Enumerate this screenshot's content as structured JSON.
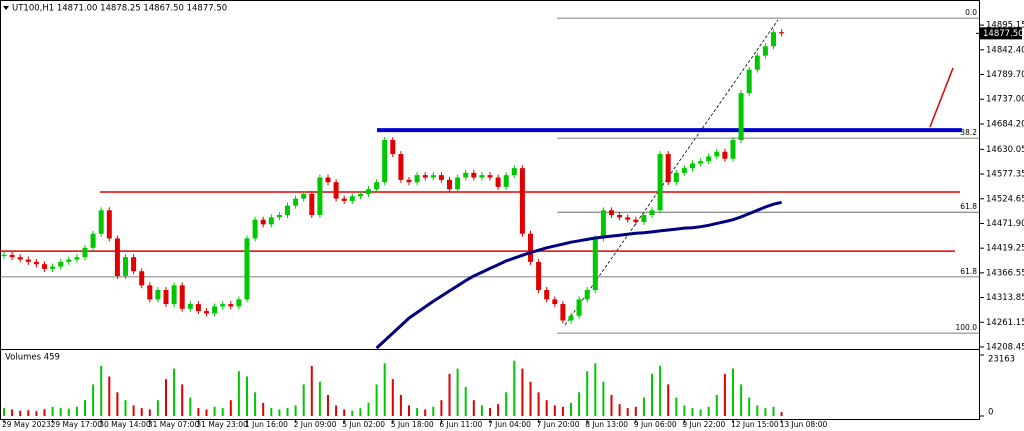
{
  "chart_data": {
    "type": "candlestick",
    "title": "UT100,H1  14871.00 14878.25 14867.50 14877.50",
    "categories": [
      "29 May 2023",
      null,
      null,
      null,
      null,
      null,
      "29 May 17:00",
      null,
      null,
      null,
      null,
      null,
      "30 May 14:00",
      null,
      null,
      null,
      null,
      null,
      "31 May 07:00",
      null,
      null,
      null,
      null,
      null,
      "31 May 23:00",
      null,
      null,
      null,
      null,
      null,
      "1 Jun 16:00",
      null,
      null,
      null,
      null,
      null,
      "2 Jun 09:00",
      null,
      null,
      null,
      null,
      null,
      "5 Jun 02:00",
      null,
      null,
      null,
      null,
      null,
      "5 Jun 18:00",
      null,
      null,
      null,
      null,
      null,
      "6 Jun 11:00",
      null,
      null,
      null,
      null,
      null,
      "7 Jun 04:00",
      null,
      null,
      null,
      null,
      null,
      "7 Jun 20:00",
      null,
      null,
      null,
      null,
      null,
      "8 Jun 13:00",
      null,
      null,
      null,
      null,
      null,
      "9 Jun 06:00",
      null,
      null,
      null,
      null,
      null,
      "9 Jun 22:00",
      null,
      null,
      null,
      null,
      null,
      "12 Jun 15:00",
      null,
      null,
      null,
      null,
      null,
      "13 Jun 08:00"
    ],
    "closes": [
      14405,
      14400,
      14395,
      14390,
      14385,
      14375,
      14380,
      14390,
      14395,
      14400,
      14420,
      14450,
      14500,
      14440,
      14360,
      14400,
      14370,
      14340,
      14310,
      14330,
      14300,
      14340,
      14290,
      14300,
      14285,
      14280,
      14295,
      14300,
      14295,
      14310,
      14440,
      14480,
      14470,
      14485,
      14490,
      14510,
      14525,
      14535,
      14490,
      14570,
      14560,
      14525,
      14520,
      14530,
      14535,
      14545,
      14560,
      14650,
      14620,
      14565,
      14560,
      14575,
      14570,
      14575,
      14565,
      14545,
      14570,
      14580,
      14570,
      14575,
      14570,
      14550,
      14575,
      14590,
      14450,
      14390,
      14330,
      14310,
      14300,
      14265,
      14275,
      14310,
      14330,
      14440,
      14500,
      14490,
      14485,
      14480,
      14475,
      14490,
      14500,
      14620,
      14560,
      14580,
      14590,
      14600,
      14605,
      14615,
      14625,
      14610,
      14650,
      14750,
      14800,
      14830,
      14850,
      14880,
      14877.5
    ],
    "up_color": "#00c800",
    "down_color": "#e00000",
    "ma": {
      "color": "#000080",
      "values": [
        null,
        null,
        null,
        null,
        null,
        null,
        null,
        null,
        null,
        null,
        null,
        null,
        null,
        null,
        null,
        null,
        null,
        null,
        null,
        null,
        null,
        null,
        null,
        null,
        null,
        null,
        null,
        null,
        null,
        null,
        null,
        null,
        null,
        null,
        null,
        null,
        null,
        null,
        null,
        null,
        null,
        null,
        null,
        null,
        null,
        null,
        14206,
        14222,
        14238,
        14254,
        14270,
        14282,
        14294,
        14306,
        14317,
        14328,
        14339,
        14350,
        14360,
        14368,
        14376,
        14384,
        14392,
        14398,
        14404,
        14410,
        14415,
        14420,
        14424,
        14428,
        14432,
        14435,
        14438,
        14441,
        14443,
        14445,
        14447,
        14449,
        14451,
        14452,
        14454,
        14456,
        14458,
        14460,
        14462,
        14463,
        14465,
        14468,
        14472,
        14476,
        14480,
        14486,
        14493,
        14500,
        14507,
        14513,
        14517
      ]
    },
    "ylim": [
      14202,
      14938
    ],
    "yticks": [
      14895.15,
      {
        "value": 14842.4,
        "label": "14842.40"
      },
      {
        "value": 14789.7,
        "label": "14789.70"
      },
      {
        "value": 14737,
        "label": "14737.00"
      },
      {
        "value": 14684.2,
        "label": "14684.20"
      },
      14630.05,
      14577.35,
      14524.65,
      {
        "value": 14471.9,
        "label": "14471.90"
      },
      14419.25,
      14366.55,
      14313.85,
      14261.15,
      14208.45
    ],
    "current_price": {
      "value": 14877.5,
      "label": "14877.50"
    },
    "levels": [
      {
        "value": 14671,
        "color": "#0000cc"
      },
      {
        "value": 14539,
        "color": "#e00000"
      },
      {
        "value": 14413,
        "color": "#e00000"
      }
    ],
    "fibo": [
      {
        "value": 14910,
        "label": "0.0"
      },
      {
        "value": 14654,
        "label": "38.2"
      },
      {
        "value": 14496,
        "label": "61.8"
      },
      {
        "value": 14358,
        "label": "61.8"
      },
      {
        "value": 14238,
        "label": "100.0"
      }
    ],
    "volume_title": "Volumes 459",
    "volume_ylim": [
      0,
      23163
    ],
    "volume_yticks": [
      0,
      23163
    ],
    "volumes": [
      3000,
      2500,
      2000,
      2200,
      1800,
      2600,
      3500,
      3000,
      2800,
      3500,
      6000,
      12000,
      19000,
      15000,
      9000,
      6000,
      4000,
      3000,
      2500,
      6000,
      14000,
      18000,
      12000,
      7000,
      3000,
      2500,
      3500,
      3000,
      6000,
      17000,
      15000,
      9000,
      5000,
      3000,
      2500,
      3000,
      4000,
      12000,
      19000,
      13000,
      8000,
      4000,
      2500,
      2000,
      3000,
      5000,
      12000,
      20000,
      14000,
      8000,
      4000,
      3000,
      2500,
      3500,
      6000,
      16000,
      18000,
      11000,
      6000,
      4000,
      3000,
      4500,
      9000,
      21000,
      18000,
      13000,
      9000,
      6000,
      4000,
      3500,
      5000,
      9000,
      17000,
      20000,
      13000,
      8000,
      4500,
      3000,
      3500,
      7000,
      16000,
      19000,
      12000,
      7000,
      4000,
      3000,
      2500,
      3500,
      8000,
      16000,
      18000,
      12000,
      7000,
      4000,
      3000,
      3500,
      1500
    ]
  }
}
